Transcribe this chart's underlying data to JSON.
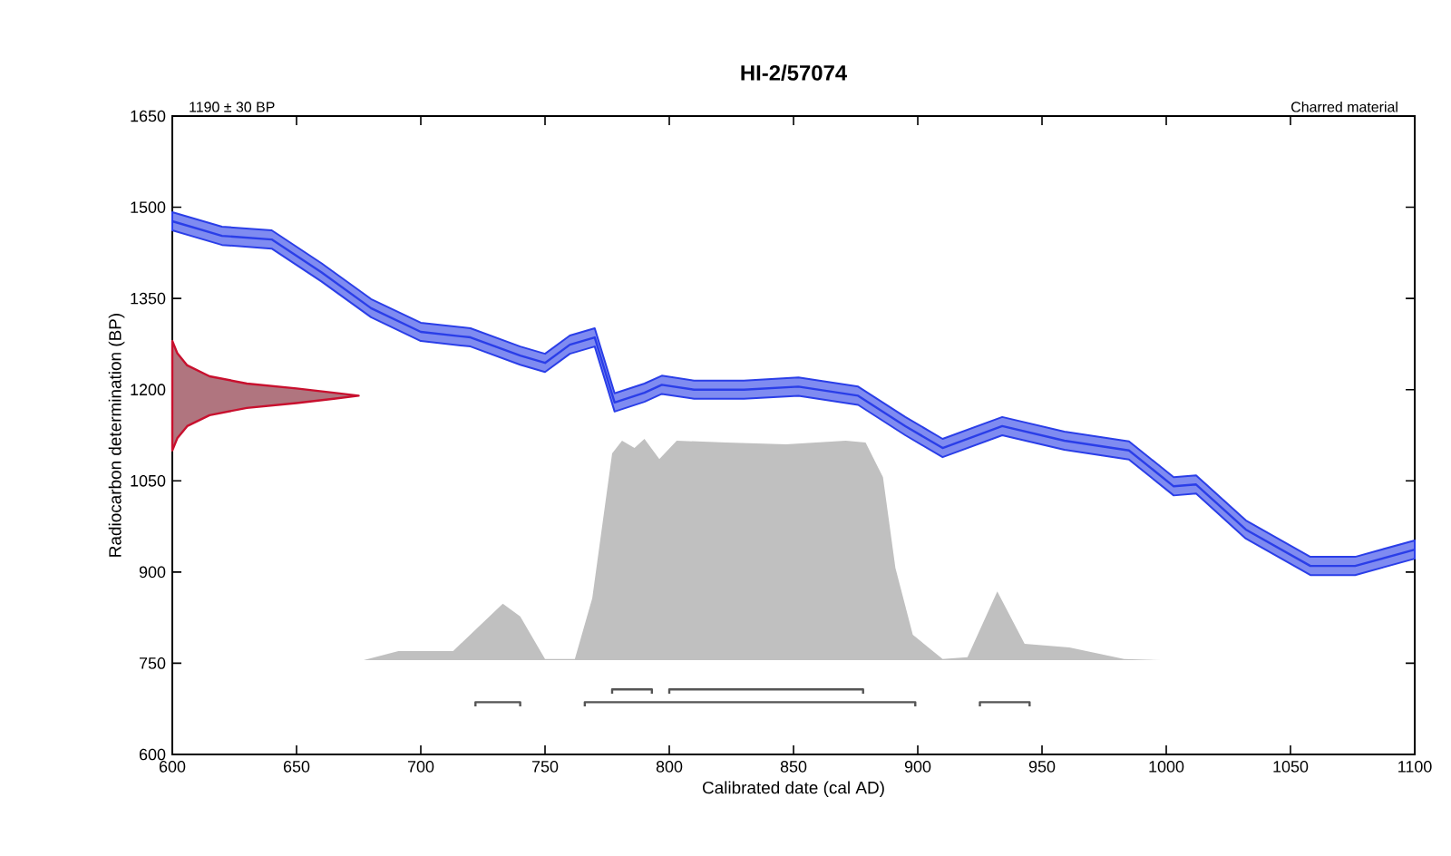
{
  "chart_data": {
    "type": "line",
    "title": "HI-2/57074",
    "xlabel": "Calibrated date (cal AD)",
    "ylabel": "Radiocarbon determination (BP)",
    "annotations": [
      "1190 ± 30 BP",
      "Charred material"
    ],
    "xlim": [
      600,
      1100
    ],
    "ylim": [
      600,
      1650
    ],
    "xticks": [
      600,
      650,
      700,
      750,
      800,
      850,
      900,
      950,
      1000,
      1050,
      1100
    ],
    "yticks": [
      600,
      750,
      900,
      1050,
      1200,
      1350,
      1500,
      1650
    ],
    "grid": false,
    "series": [
      {
        "type": "area",
        "color": "#c8102e",
        "x": [
          600,
          602,
          606,
          615,
          630,
          650,
          665,
          675,
          665,
          650,
          630,
          615,
          606,
          602,
          600
        ],
        "values": [
          1100,
          1120,
          1140,
          1158,
          1170,
          1178,
          1185,
          1190,
          1195,
          1202,
          1210,
          1222,
          1240,
          1260,
          1280
        ]
      },
      {
        "type": "area",
        "color": "#c0c0c0",
        "x": [
          677,
          691,
          713,
          733,
          740,
          750,
          762,
          769,
          777,
          781,
          786,
          790,
          796,
          803,
          823,
          847,
          871,
          879,
          886,
          891,
          898,
          910,
          920,
          932,
          943,
          961,
          983,
          998
        ],
        "values": [
          755,
          770,
          770,
          848,
          827,
          757,
          757,
          857,
          1095,
          1116,
          1104,
          1119,
          1086,
          1116,
          1113,
          1110,
          1116,
          1113,
          1056,
          907,
          797,
          757,
          760,
          868,
          782,
          776,
          757,
          755
        ]
      },
      {
        "color": "#2a3ee8",
        "x": [
          600,
          620,
          640,
          660,
          680,
          700,
          720,
          740,
          750,
          760,
          770,
          778,
          790,
          797,
          810,
          830,
          852,
          876,
          895,
          910,
          934,
          959,
          985,
          1003,
          1012,
          1032,
          1058,
          1076,
          1100
        ],
        "values": [
          1477,
          1453,
          1447,
          1393,
          1334,
          1295,
          1286,
          1256,
          1244,
          1274,
          1286,
          1179,
          1195,
          1208,
          1200,
          1200,
          1205,
          1190,
          1140,
          1104,
          1140,
          1116,
          1100,
          1041,
          1044,
          970,
          910,
          910,
          937
        ],
        "lower": [
          1462,
          1438,
          1432,
          1378,
          1319,
          1280,
          1271,
          1241,
          1229,
          1259,
          1271,
          1164,
          1180,
          1193,
          1185,
          1185,
          1190,
          1175,
          1125,
          1089,
          1125,
          1101,
          1085,
          1026,
          1029,
          955,
          895,
          895,
          922
        ],
        "upper": [
          1492,
          1468,
          1462,
          1408,
          1349,
          1310,
          1301,
          1271,
          1259,
          1289,
          1301,
          1194,
          1210,
          1223,
          1215,
          1215,
          1220,
          1205,
          1155,
          1119,
          1155,
          1131,
          1115,
          1056,
          1059,
          985,
          925,
          925,
          952
        ]
      },
      {
        "color": "#555555",
        "x": [
          777,
          777,
          793,
          793,
          null,
          800,
          800,
          878,
          878
        ],
        "values": [
          700,
          707,
          707,
          700,
          null,
          700,
          707,
          707,
          700
        ]
      },
      {
        "color": "#555555",
        "x": [
          722,
          722,
          740,
          740,
          null,
          766,
          766,
          899,
          899,
          null,
          925,
          925,
          945,
          945
        ],
        "values": [
          679,
          686,
          686,
          679,
          null,
          679,
          686,
          686,
          679,
          null,
          679,
          686,
          686,
          679
        ]
      }
    ]
  }
}
